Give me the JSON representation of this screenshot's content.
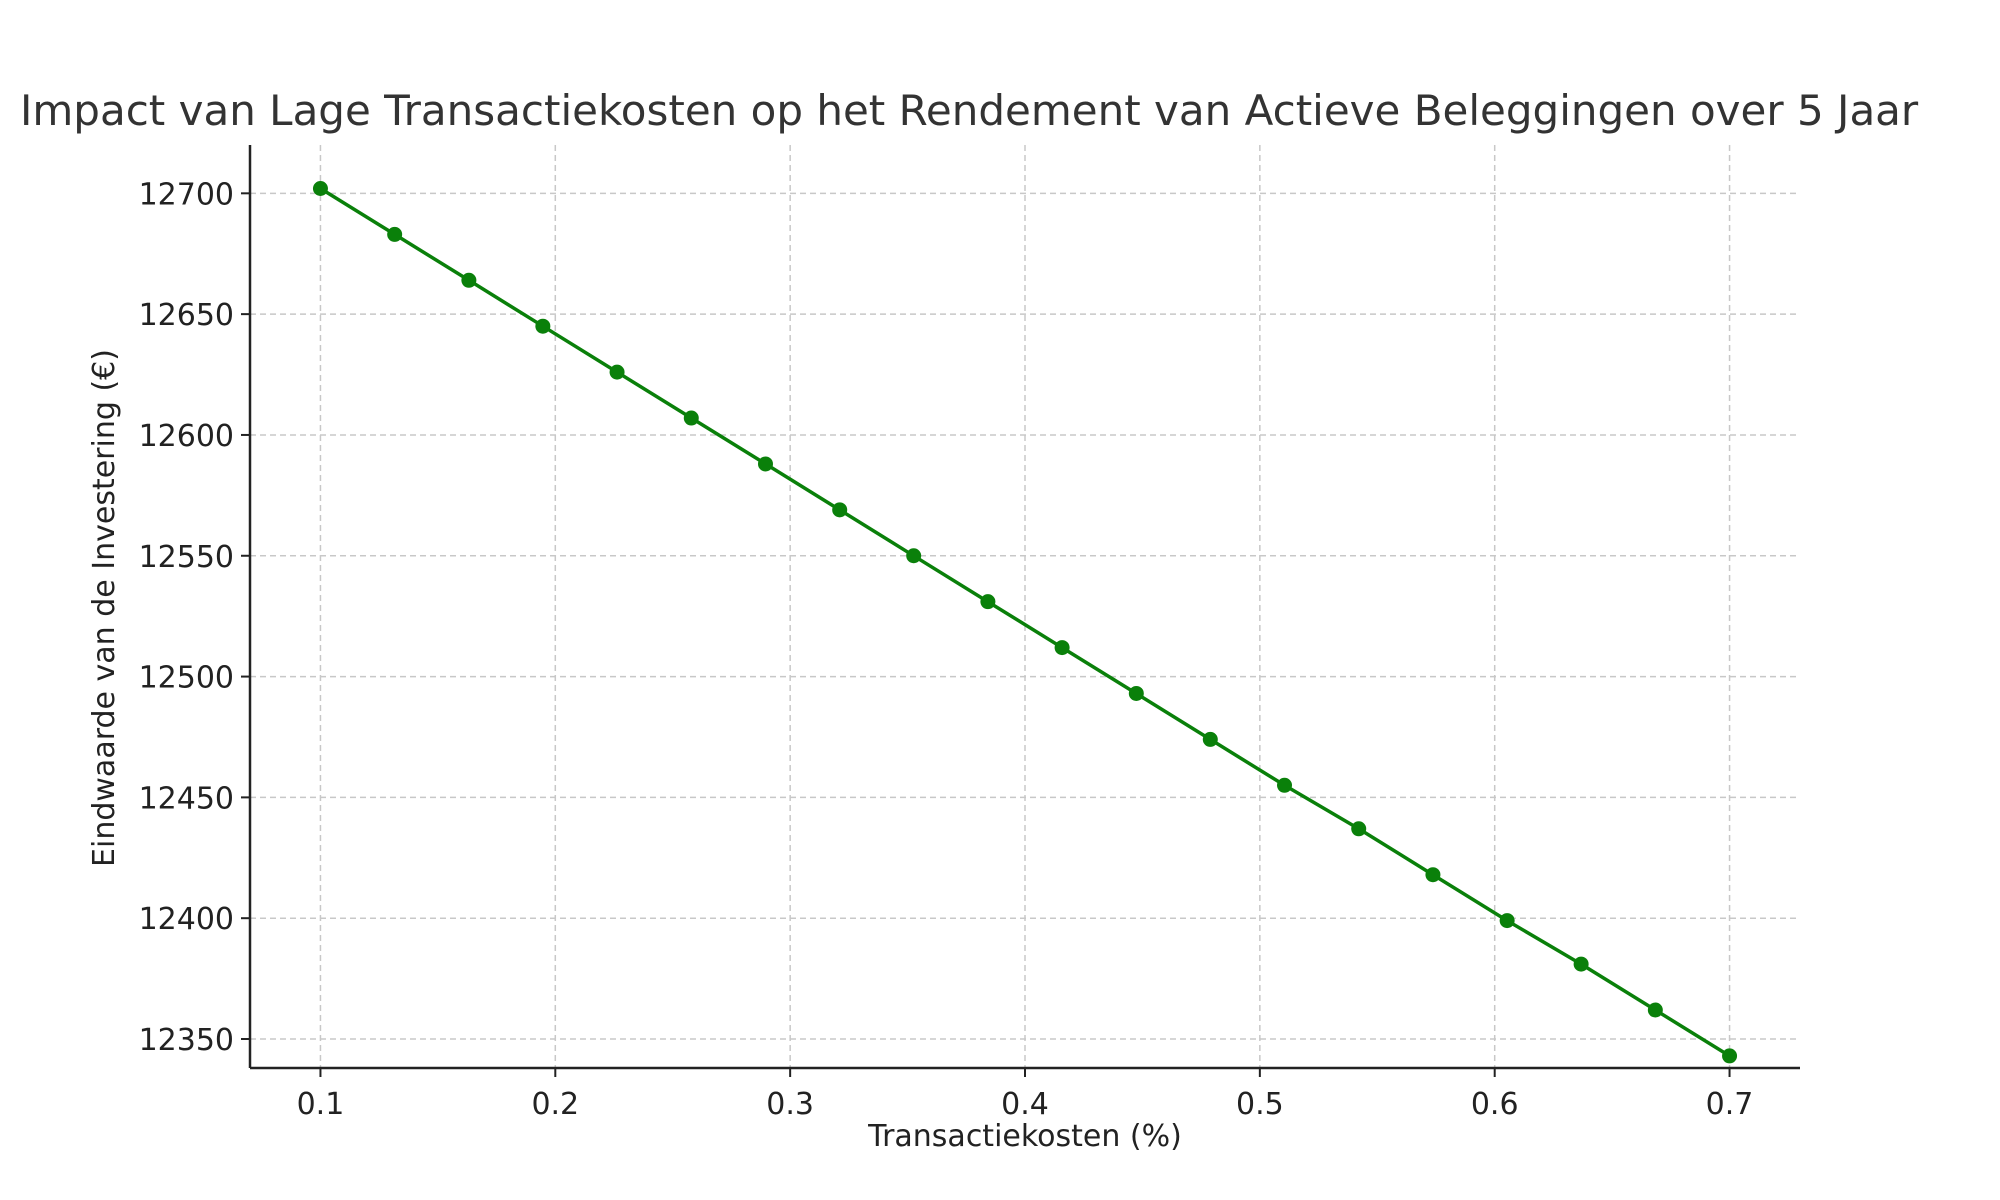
{
  "chart_data": {
    "type": "line",
    "title": "Impact van Lage Transactiekosten op het Rendement van Actieve Beleggingen over 5 Jaar",
    "xlabel": "Transactiekosten (%)",
    "ylabel": "Eindwaarde van de Investering (€)",
    "xlim": [
      0.07,
      0.73
    ],
    "ylim": [
      12338,
      12720
    ],
    "xticks": [
      "0.1",
      "0.2",
      "0.3",
      "0.4",
      "0.5",
      "0.6",
      "0.7"
    ],
    "yticks": [
      "12350",
      "12400",
      "12450",
      "12500",
      "12550",
      "12600",
      "12650",
      "12700"
    ],
    "grid": true,
    "grid_style": "dashed",
    "legend": "none",
    "series": [
      {
        "color": "#0a800a",
        "marker": "circle",
        "x": [
          0.1,
          0.1316,
          0.1632,
          0.1947,
          0.2263,
          0.2579,
          0.2895,
          0.3211,
          0.3526,
          0.3842,
          0.4158,
          0.4474,
          0.4789,
          0.5105,
          0.5421,
          0.5737,
          0.6053,
          0.6368,
          0.6684,
          0.7
        ],
        "y": [
          12702,
          12683,
          12664,
          12645,
          12626,
          12607,
          12588,
          12569,
          12550,
          12531,
          12512,
          12493,
          12474,
          12455,
          12437,
          12418,
          12399,
          12381,
          12362,
          12343
        ]
      }
    ]
  }
}
